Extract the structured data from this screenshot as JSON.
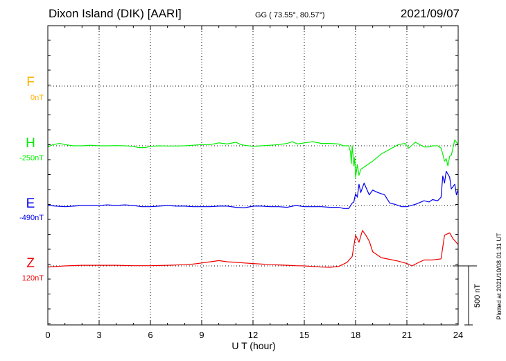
{
  "header": {
    "station": "Dixon Island (DIK)  [AARI]",
    "coords": "GG ( 73.55°,  80.57°)",
    "date": "2021/09/07"
  },
  "footer": {
    "plotted": "Plotted at 2021/10/08 01:31  UT"
  },
  "chart_data": {
    "type": "line",
    "xlabel": "U T (hour)",
    "xlim": [
      0,
      24
    ],
    "x_ticks": [
      0,
      3,
      6,
      9,
      12,
      15,
      18,
      21,
      24
    ],
    "x_tick_labels": [
      "0",
      "3",
      "6",
      "9",
      "12",
      "15",
      "18",
      "21",
      "24"
    ],
    "scale_bar": {
      "label": "500 nT",
      "value_nT": 500
    },
    "colors": {
      "F": "#ffb000",
      "H": "#00ee00",
      "E": "#0000ee",
      "Z": "#ee0000"
    },
    "series": [
      {
        "name": "F",
        "baseline_label": "0nT",
        "baseline_nT": 0,
        "x": [],
        "y": []
      },
      {
        "name": "H",
        "baseline_label": "-250nT",
        "baseline_nT": -250,
        "x": [
          0,
          0.3,
          0.7,
          1,
          1.5,
          2,
          2.5,
          3,
          3.5,
          4,
          4.5,
          5,
          5.3,
          5.7,
          6,
          6.5,
          7,
          7.5,
          8,
          8.5,
          9,
          9.5,
          10,
          10.5,
          11,
          11.3,
          11.5,
          12,
          12.5,
          13,
          13.5,
          14,
          14.3,
          14.6,
          15,
          15.5,
          16,
          16.5,
          17,
          17.3,
          17.6,
          17.7,
          17.75,
          17.8,
          17.85,
          17.9,
          17.95,
          18,
          18.1,
          18.2,
          18.3,
          18.5,
          18.8,
          19,
          19.5,
          20,
          20.5,
          20.9,
          21.1,
          21.5,
          22,
          22.3,
          22.5,
          22.8,
          23,
          23.1,
          23.2,
          23.3,
          23.4,
          23.5,
          23.6,
          23.8,
          24
        ],
        "y": [
          -260,
          -240,
          -230,
          -240,
          -250,
          -250,
          -245,
          -250,
          -250,
          -248,
          -250,
          -255,
          -265,
          -265,
          -255,
          -250,
          -252,
          -252,
          -250,
          -245,
          -240,
          -240,
          -225,
          -235,
          -220,
          -240,
          -245,
          -255,
          -250,
          -245,
          -240,
          -230,
          -215,
          -235,
          -225,
          -215,
          -230,
          -230,
          -235,
          -250,
          -250,
          -300,
          -400,
          -250,
          -330,
          -420,
          -350,
          -520,
          -410,
          -500,
          -450,
          -430,
          -400,
          -380,
          -320,
          -280,
          -240,
          -230,
          -270,
          -220,
          -260,
          -260,
          -250,
          -250,
          -270,
          -320,
          -380,
          -360,
          -420,
          -340,
          -330,
          -200,
          -240
        ]
      },
      {
        "name": "E",
        "baseline_label": "-490nT",
        "baseline_nT": -490,
        "x": [
          0,
          0.5,
          1,
          1.5,
          2,
          2.5,
          3,
          3.5,
          4,
          4.5,
          5,
          5.5,
          6,
          6.5,
          7,
          7.5,
          8,
          8.5,
          9,
          9.5,
          10,
          10.5,
          11,
          11.5,
          12,
          12.5,
          13,
          13.5,
          14,
          14.5,
          15,
          15.5,
          16,
          16.5,
          17,
          17.3,
          17.6,
          17.8,
          17.9,
          18,
          18.1,
          18.2,
          18.3,
          18.5,
          18.8,
          19,
          19.3,
          19.7,
          20,
          20.3,
          20.7,
          21,
          21.5,
          22,
          22.3,
          22.5,
          22.8,
          23,
          23.1,
          23.2,
          23.3,
          23.5,
          23.6,
          23.8,
          23.9,
          24
        ],
        "y": [
          -490,
          -495,
          -500,
          -495,
          -490,
          -490,
          -490,
          -485,
          -490,
          -485,
          -490,
          -500,
          -500,
          -495,
          -490,
          -495,
          -495,
          -500,
          -500,
          -500,
          -495,
          -495,
          -505,
          -510,
          -495,
          -495,
          -500,
          -500,
          -505,
          -490,
          -500,
          -500,
          -500,
          -505,
          -505,
          -515,
          -515,
          -470,
          -460,
          -390,
          -420,
          -310,
          -380,
          -300,
          -400,
          -360,
          -380,
          -400,
          -470,
          -480,
          -500,
          -500,
          -480,
          -450,
          -460,
          -440,
          -450,
          -420,
          -240,
          -300,
          -200,
          -250,
          -350,
          -310,
          -400,
          -355
        ]
      },
      {
        "name": "Z",
        "baseline_label": "120nT",
        "baseline_nT": 120,
        "x": [
          0,
          0.5,
          1,
          2,
          3,
          4,
          5,
          6,
          7,
          8,
          8.5,
          9,
          9.5,
          10,
          10.5,
          11,
          11.5,
          12,
          12.5,
          13,
          13.5,
          14,
          14.5,
          15,
          15.5,
          16,
          16.5,
          17,
          17.5,
          17.8,
          18,
          18.2,
          18.4,
          18.6,
          18.8,
          19,
          19.5,
          20,
          20.5,
          21,
          21.3,
          21.7,
          22,
          22.5,
          23,
          23.2,
          23.5,
          23.7,
          24
        ],
        "y": [
          110,
          115,
          120,
          125,
          125,
          125,
          122,
          122,
          125,
          130,
          135,
          145,
          155,
          165,
          155,
          150,
          145,
          140,
          135,
          130,
          128,
          125,
          122,
          120,
          115,
          110,
          108,
          115,
          150,
          200,
          380,
          320,
          420,
          380,
          330,
          240,
          190,
          175,
          160,
          140,
          120,
          150,
          170,
          170,
          180,
          380,
          400,
          350,
          300
        ]
      }
    ]
  }
}
